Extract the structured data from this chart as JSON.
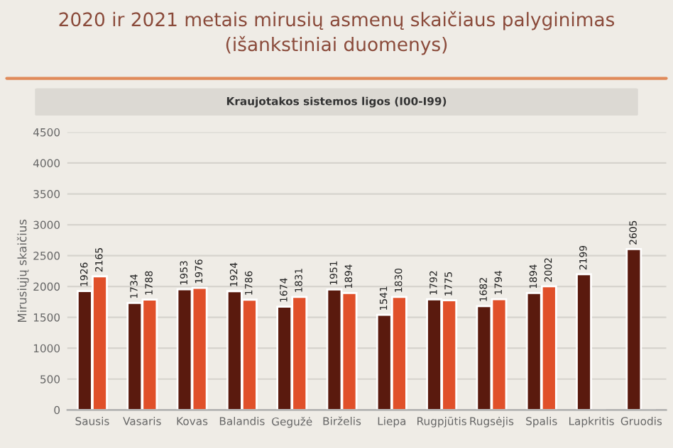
{
  "chart_data": {
    "type": "bar",
    "title": "2020 ir 2021 metais mirusių asmenų skaičiaus palyginimas\n(išankstiniai duomenys)",
    "subtitle": "Kraujotakos sistemos ligos (I00-I99)",
    "ylabel": "Mirusiųjų skaičius",
    "categories": [
      "Sausis",
      "Vasaris",
      "Kovas",
      "Balandis",
      "Gegužė",
      "Birželis",
      "Liepa",
      "Rugpjūtis",
      "Rugsėjis",
      "Spalis",
      "Lapkritis",
      "Gruodis"
    ],
    "series": [
      {
        "color": "#5a1a0e",
        "values": [
          1926,
          1734,
          1953,
          1924,
          1674,
          1951,
          1541,
          1792,
          1682,
          1894,
          2199,
          2605
        ]
      },
      {
        "color": "#e0502a",
        "values": [
          2165,
          1788,
          1976,
          1786,
          1831,
          1894,
          1830,
          1775,
          1794,
          2002,
          null,
          null
        ]
      }
    ],
    "ylim": [
      0,
      4500
    ],
    "yticks": [
      0,
      500,
      1000,
      1500,
      2000,
      2500,
      3000,
      3500,
      4000,
      4500
    ],
    "grid": "y",
    "data_labels": true,
    "legend": false
  }
}
